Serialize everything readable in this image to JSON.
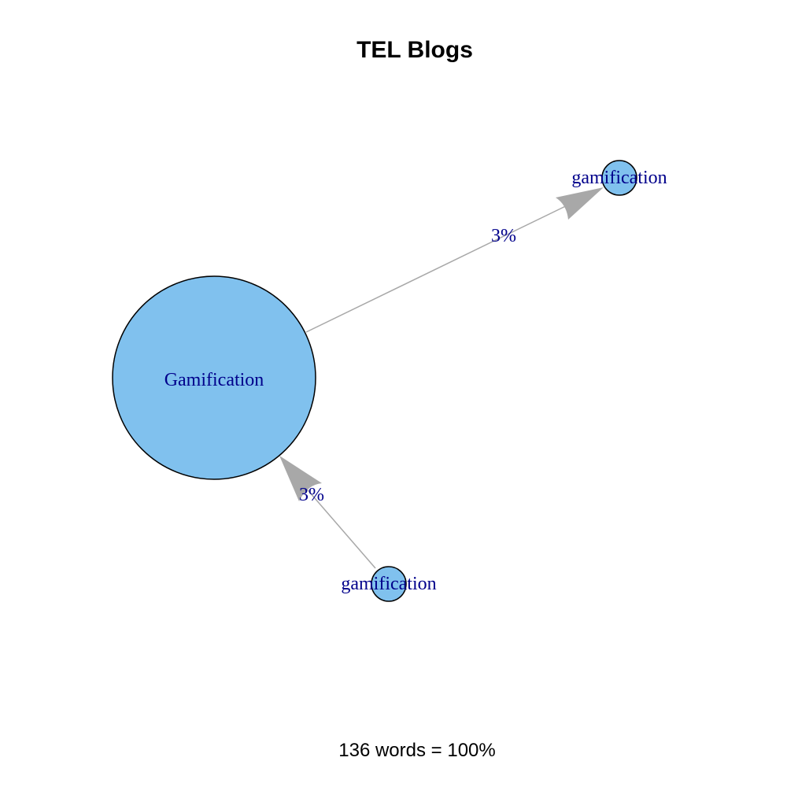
{
  "title": "TEL Blogs",
  "footer": "136 words = 100%",
  "colors": {
    "node_fill": "#80c1ee",
    "node_stroke": "#000000",
    "edge": "#a8a8a8",
    "label": "#00008b",
    "text": "#000000"
  },
  "nodes": [
    {
      "id": "main",
      "label": "Gamification"
    },
    {
      "id": "top-right",
      "label": "gamification"
    },
    {
      "id": "bottom",
      "label": "gamification"
    }
  ],
  "edges": [
    {
      "from": "main",
      "to": "top-right",
      "label": "3%"
    },
    {
      "from": "bottom",
      "to": "main",
      "label": "3%"
    }
  ]
}
